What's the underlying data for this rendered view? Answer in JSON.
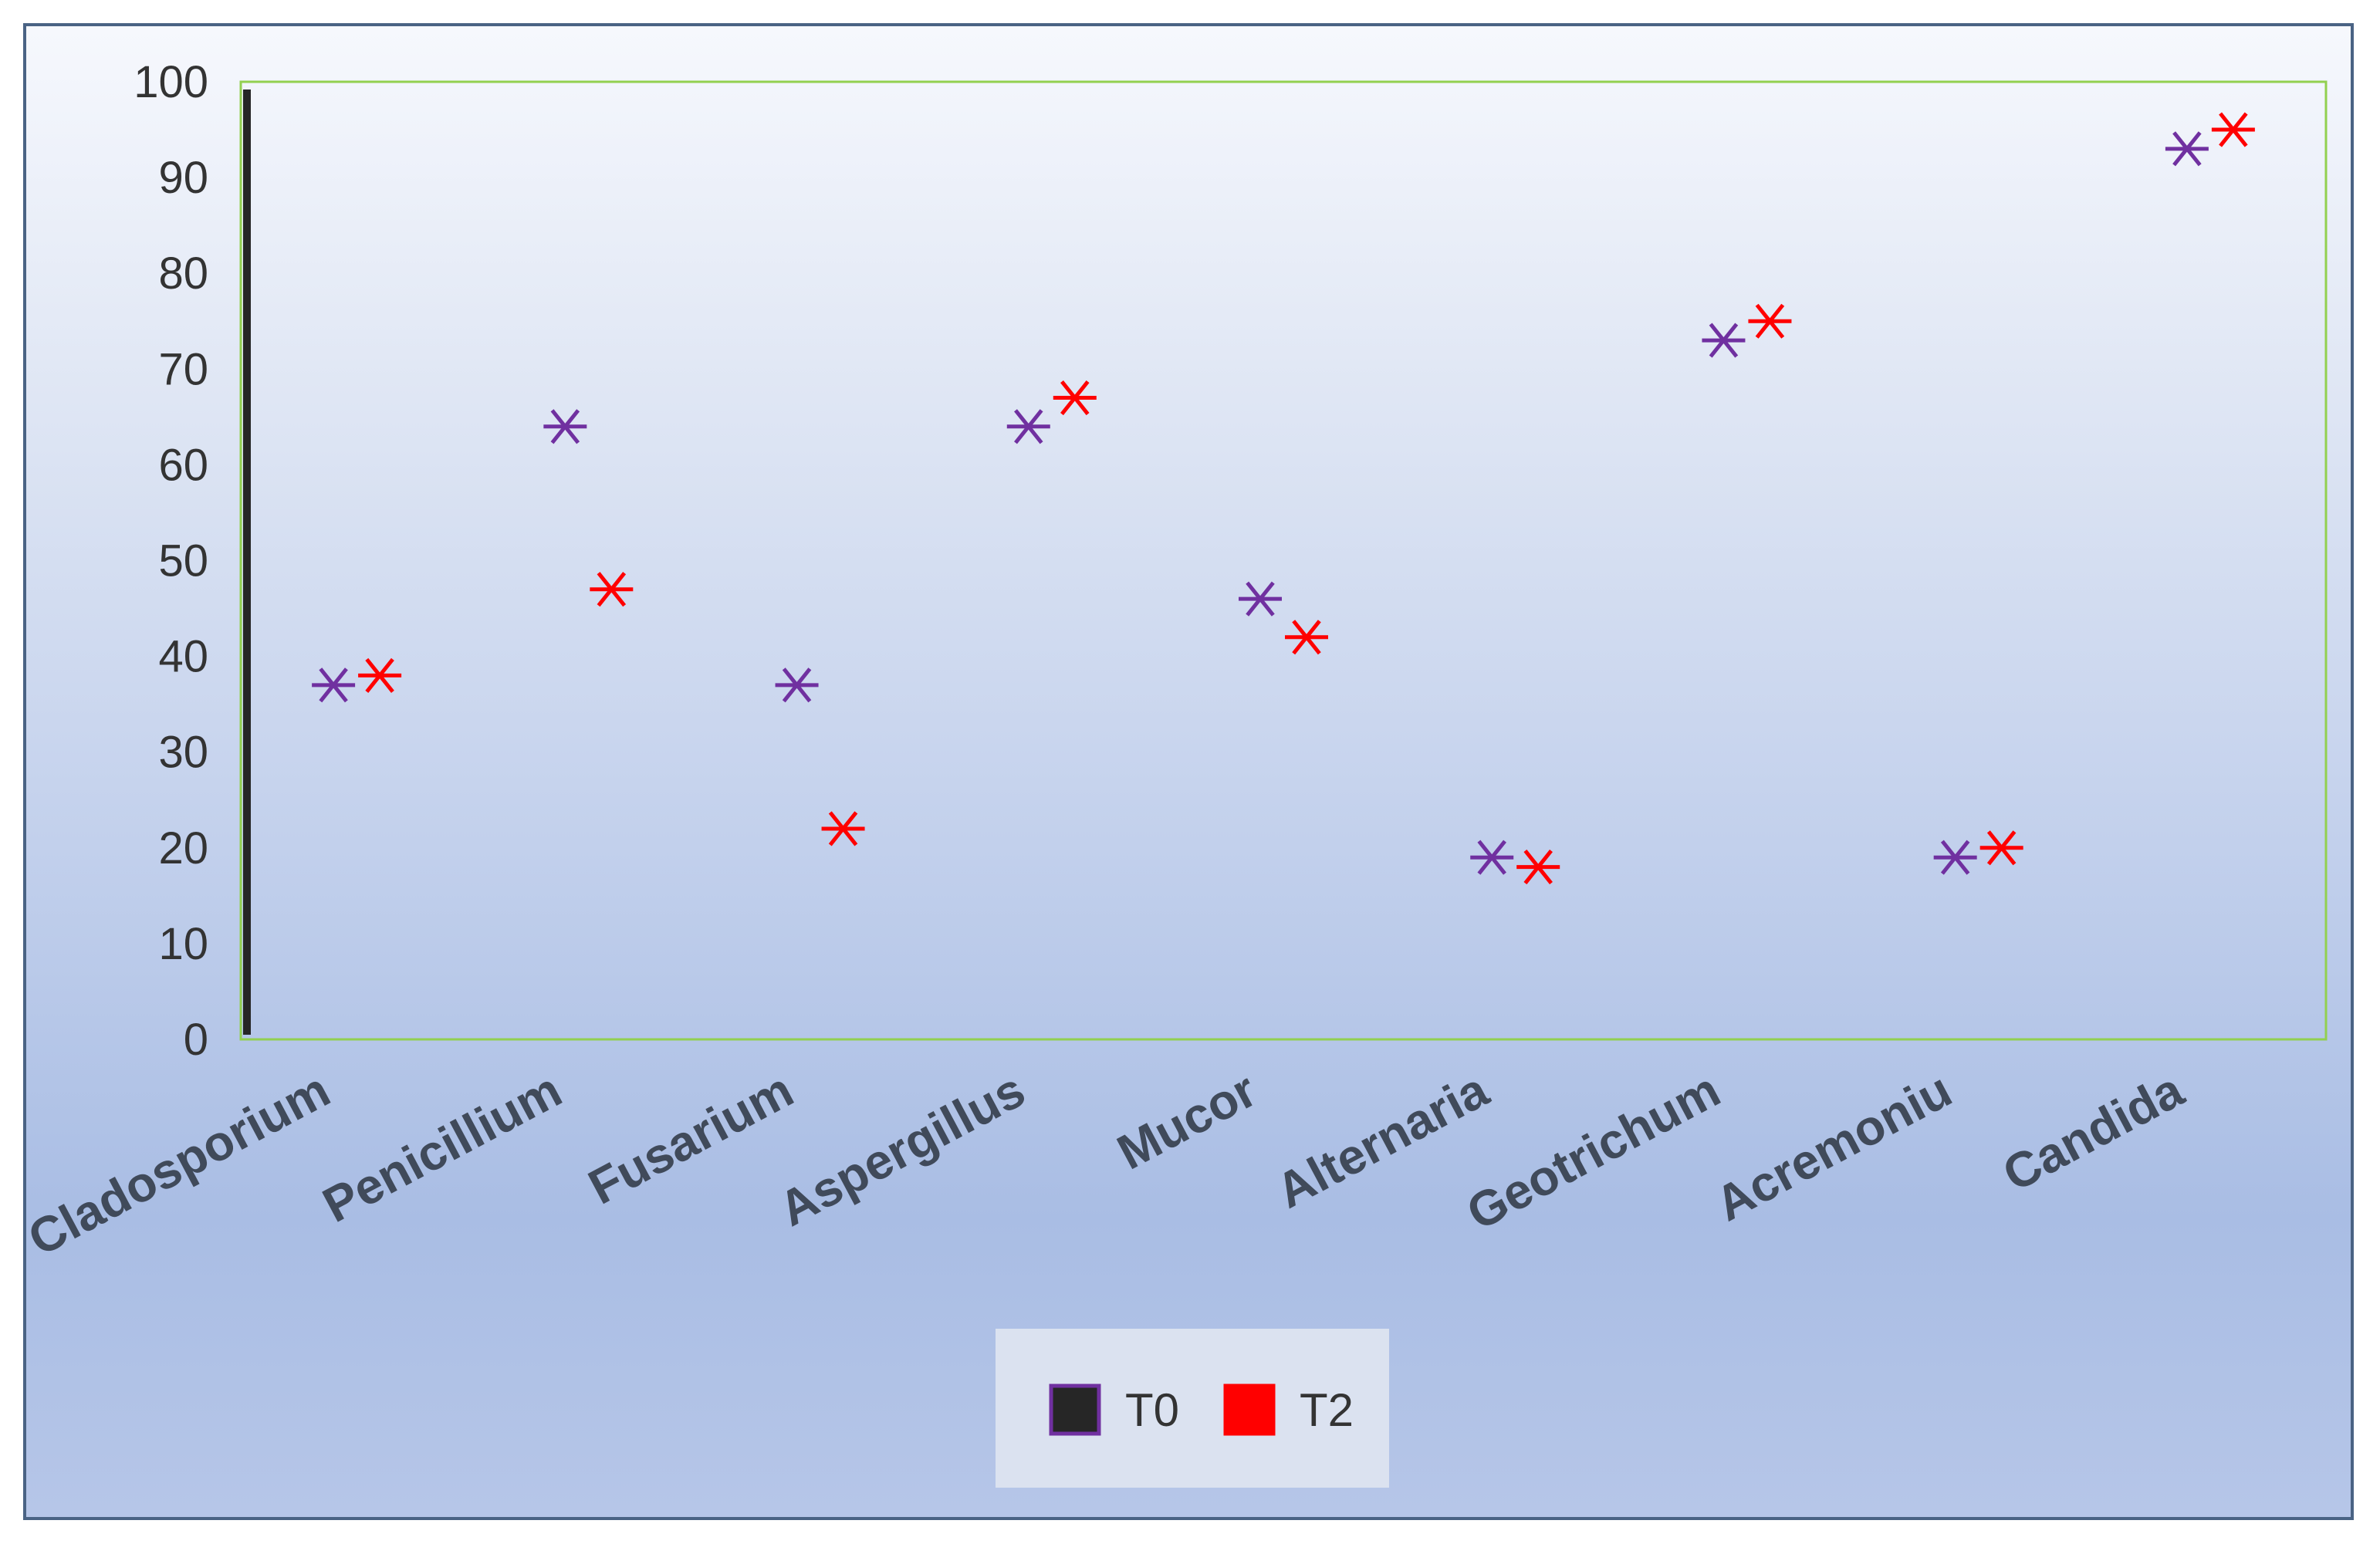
{
  "chart_data": {
    "type": "scatter",
    "categories": [
      "Cladosporium",
      "Penicillium",
      "Fusarium",
      "Aspergillus",
      "Mucor",
      "Alternaria",
      "Geotrichum",
      "Acremoniu",
      "Candida"
    ],
    "series": [
      {
        "name": "T0",
        "values": [
          37,
          64,
          37,
          64,
          46,
          19,
          73,
          19,
          93
        ],
        "marker_color": "#7030a0",
        "legend_color": "#262626"
      },
      {
        "name": "T2",
        "values": [
          38,
          47,
          22,
          67,
          42,
          18,
          75,
          20,
          95
        ],
        "marker_color": "#ff0000",
        "legend_color": "#ff0000"
      }
    ],
    "ylim": [
      0,
      100
    ],
    "yticks": [
      "0",
      "10",
      "20",
      "30",
      "40",
      "50",
      "60",
      "70",
      "80",
      "90",
      "100"
    ],
    "title": "",
    "xlabel": "",
    "ylabel": "",
    "grid": false,
    "legend_position": "bottom-center",
    "plot_border_color": "#92d050"
  }
}
